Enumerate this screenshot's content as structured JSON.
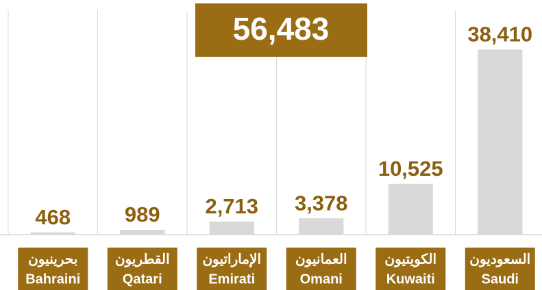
{
  "chart_data": {
    "type": "bar",
    "annotation": "56,483",
    "categories": [
      [
        "بحرينيون",
        "Bahraini"
      ],
      [
        "القطريون",
        "Qatari"
      ],
      [
        "الإماراتيون",
        "Emirati"
      ],
      [
        "العمانيون",
        "Omani"
      ],
      [
        "الكويتيون",
        "Kuwaiti"
      ],
      [
        "السعوديون",
        "Saudi"
      ]
    ],
    "values": [
      468,
      989,
      2713,
      3378,
      10525,
      38410
    ],
    "value_labels": [
      "468",
      "989",
      "2,713",
      "3,378",
      "10,525",
      "38,410"
    ],
    "color": "#d9d9d9",
    "label_color": "#8c5f10",
    "ylim": [
      0,
      44000
    ]
  }
}
